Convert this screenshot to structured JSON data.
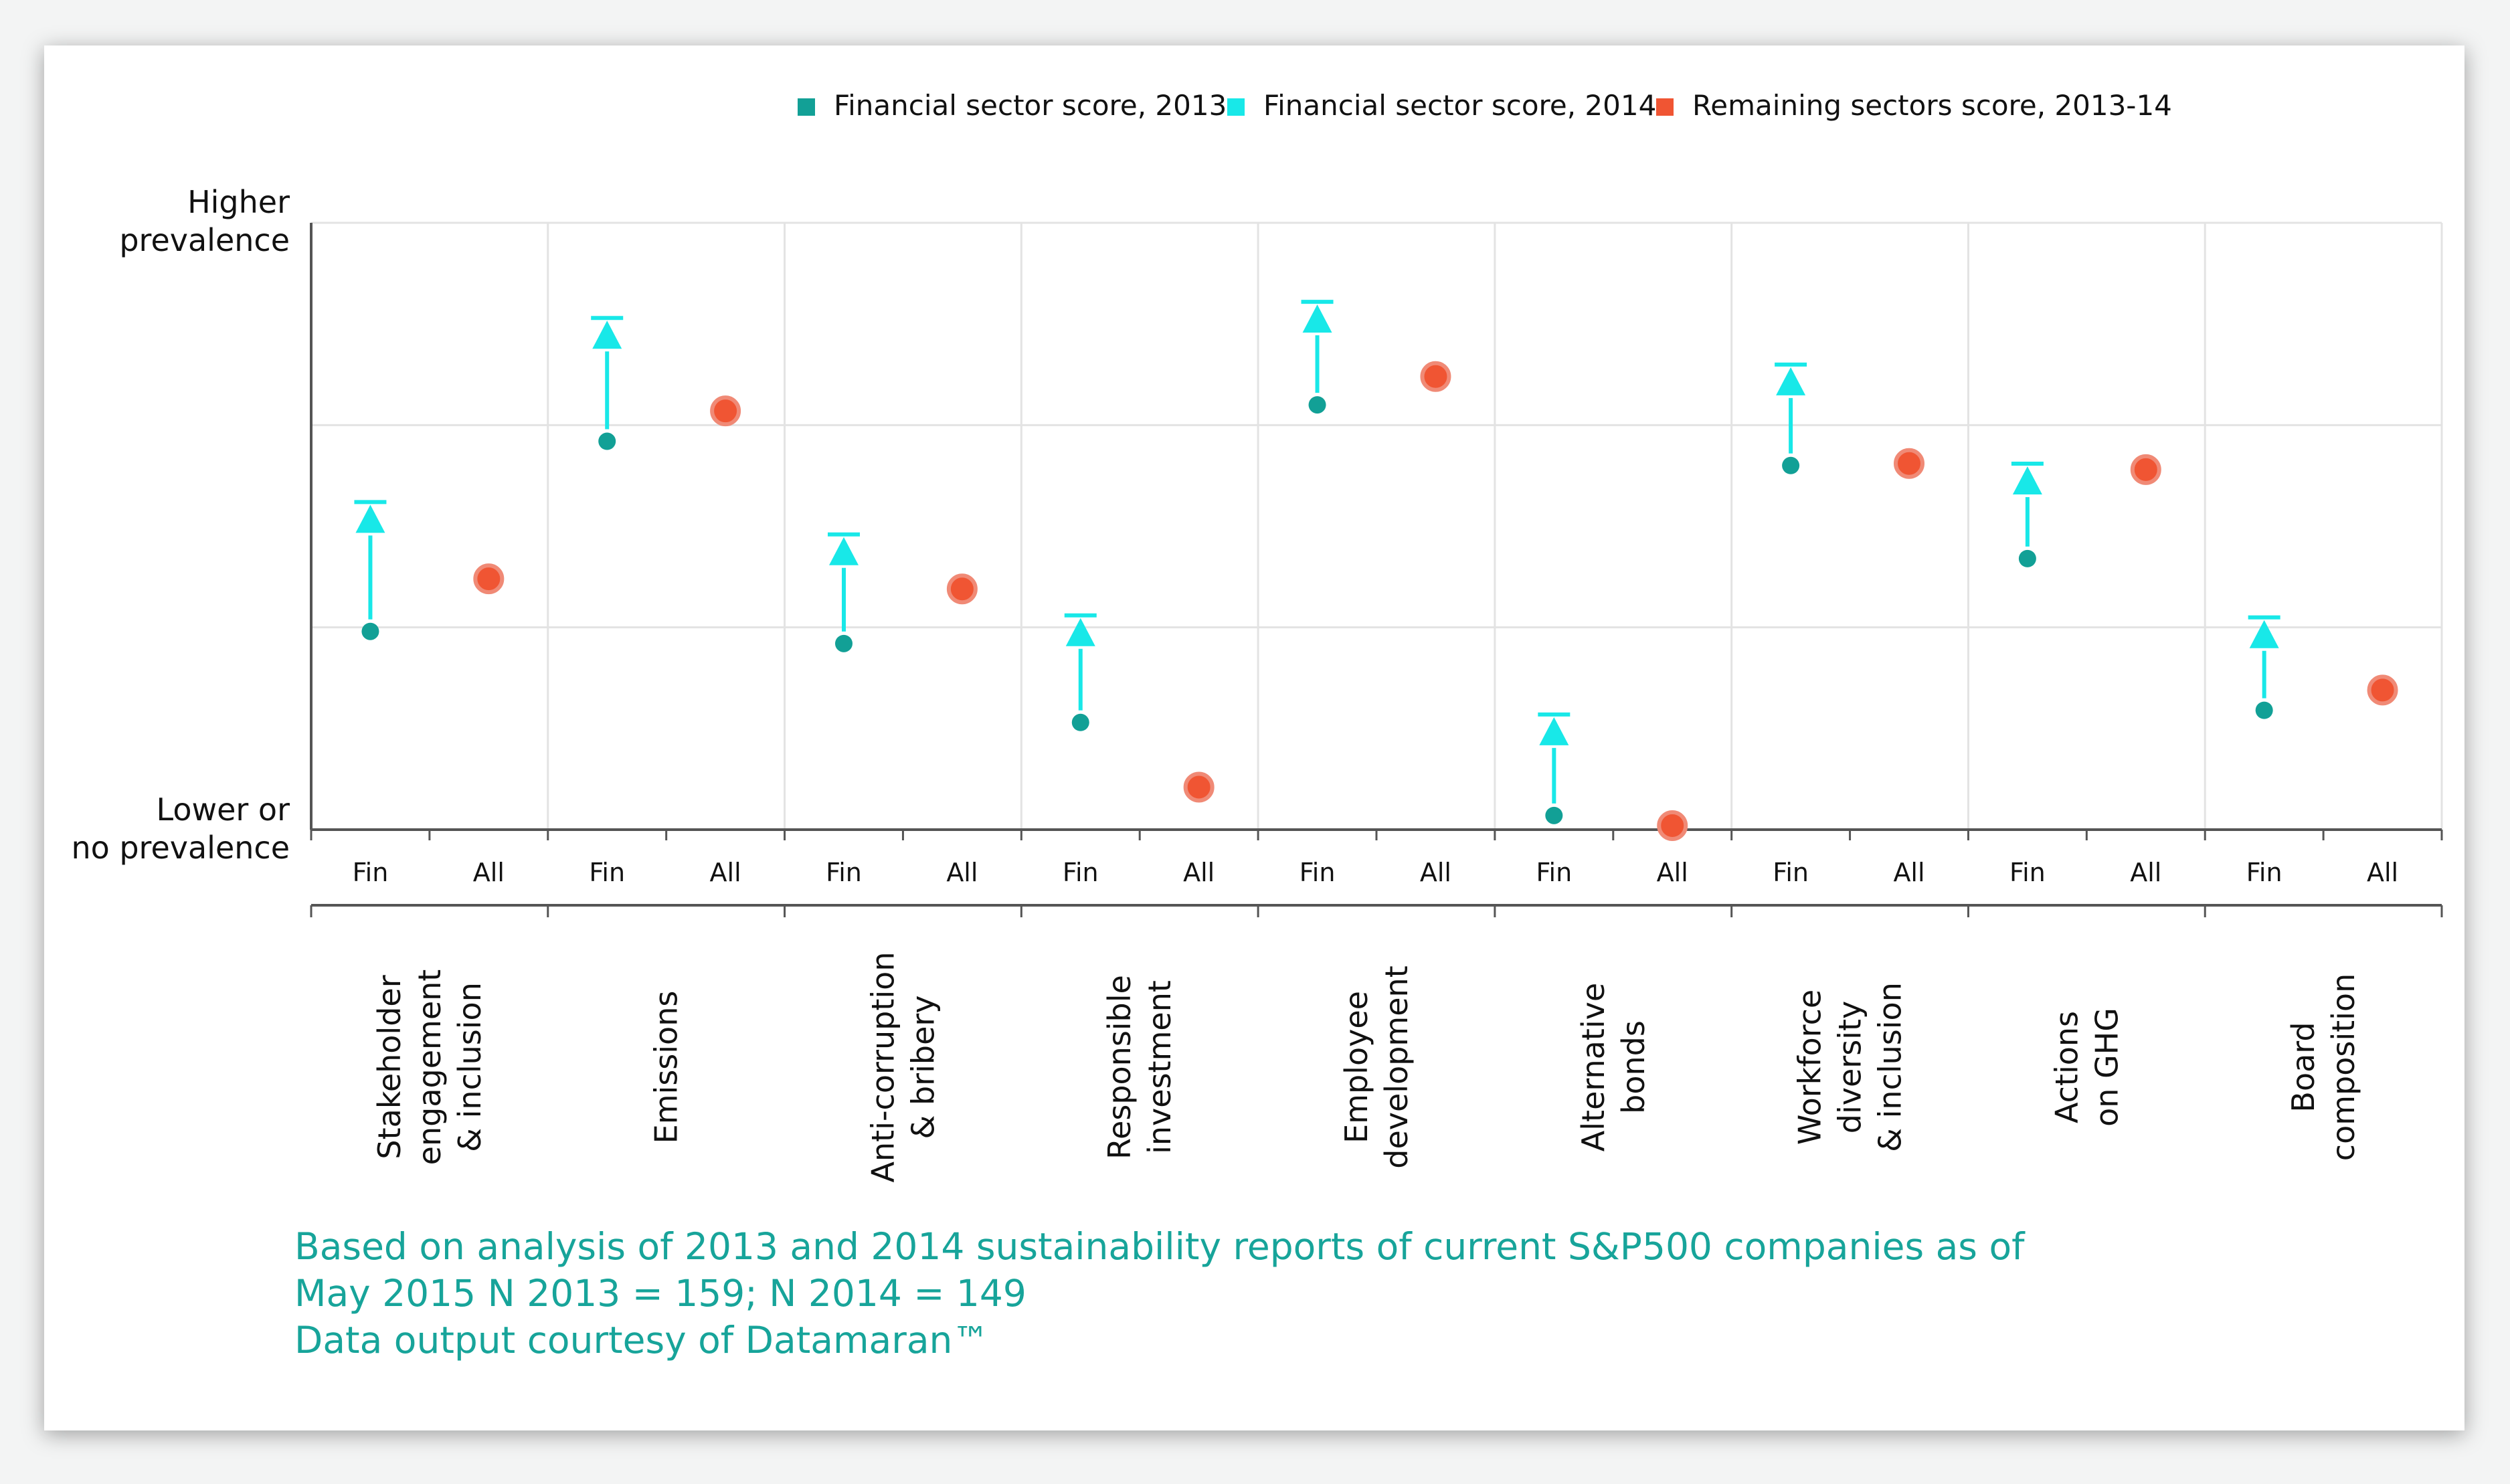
{
  "chart_data": {
    "type": "scatter",
    "legend": {
      "placement": "top",
      "items": [
        {
          "label": "Financial sector score, 2013",
          "marker": "square",
          "color": "#12a096"
        },
        {
          "label": "Financial sector score, 2014",
          "marker": "square",
          "color": "#18e8e8"
        },
        {
          "label": "Remaining sectors score, 2013-14",
          "marker": "square",
          "color": "#f05533"
        }
      ]
    },
    "y_axis": {
      "top_label": [
        "Higher",
        "prevalence"
      ],
      "bottom_label": [
        "Lower or",
        "no prevalence"
      ],
      "range": [
        0,
        3
      ],
      "gridlines": [
        1,
        2
      ],
      "tick_labels_shown": false
    },
    "sub_labels": [
      "Fin",
      "All"
    ],
    "categories": [
      {
        "lines": [
          "Stakeholder",
          "engagement",
          "& inclusion"
        ],
        "fin_2013": 0.98,
        "fin_2014": 1.54,
        "all": 1.24
      },
      {
        "lines": [
          "Emissions"
        ],
        "fin_2013": 1.92,
        "fin_2014": 2.45,
        "all": 2.07
      },
      {
        "lines": [
          "Anti-corruption",
          "& bribery"
        ],
        "fin_2013": 0.92,
        "fin_2014": 1.38,
        "all": 1.19
      },
      {
        "lines": [
          "Responsible",
          "investment"
        ],
        "fin_2013": 0.53,
        "fin_2014": 0.98,
        "all": 0.21
      },
      {
        "lines": [
          "Employee",
          "development"
        ],
        "fin_2013": 2.1,
        "fin_2014": 2.53,
        "all": 2.24
      },
      {
        "lines": [
          "Alternative",
          "bonds"
        ],
        "fin_2013": 0.07,
        "fin_2014": 0.49,
        "all": 0.02
      },
      {
        "lines": [
          "Workforce",
          "diversity",
          "& inclusion"
        ],
        "fin_2013": 1.8,
        "fin_2014": 2.22,
        "all": 1.81
      },
      {
        "lines": [
          "Actions",
          "on GHG"
        ],
        "fin_2013": 1.34,
        "fin_2014": 1.73,
        "all": 1.78
      },
      {
        "lines": [
          "Board",
          "composition"
        ],
        "fin_2013": 0.59,
        "fin_2014": 0.97,
        "all": 0.69
      }
    ],
    "colors": {
      "fin_2013": "#12a096",
      "fin_2014": "#18e8e8",
      "all": "#f05533",
      "all_stroke": "#f08a76",
      "grid": "#e3e3e3",
      "axis": "#555555",
      "text": "#111111"
    }
  },
  "footnote": {
    "lines": [
      "Based on analysis of 2013 and 2014 sustainability reports of current S&P500 companies as of",
      "May 2015 N 2013 = 159; N 2014 = 149",
      "Data output courtesy of Datamaran™"
    ],
    "color": "#17a49a"
  }
}
